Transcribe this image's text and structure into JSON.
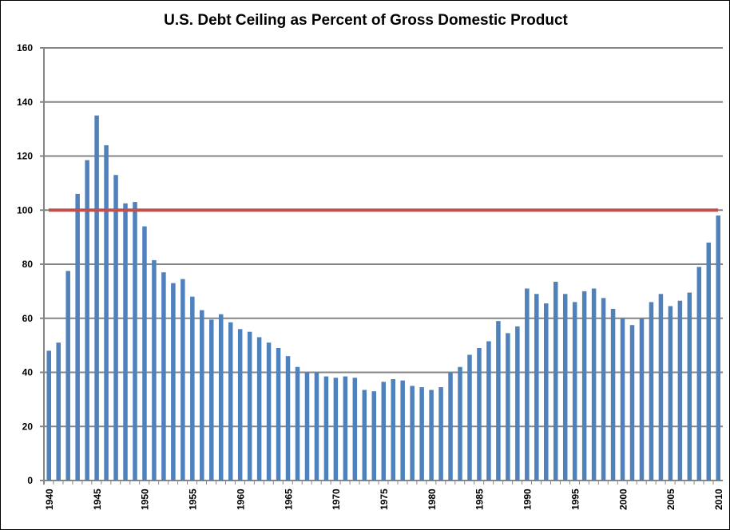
{
  "chart_data": {
    "type": "bar",
    "title": "U.S. Debt Ceiling as Percent of Gross Domestic Product",
    "xlabel": "",
    "ylabel": "",
    "ylim": [
      0,
      160
    ],
    "yticks": [
      0,
      20,
      40,
      60,
      80,
      100,
      120,
      140,
      160
    ],
    "xtick_labels": [
      "1940",
      "1945",
      "1950",
      "1955",
      "1960",
      "1965",
      "1970",
      "1975",
      "1980",
      "1985",
      "1990",
      "1995",
      "2000",
      "2005",
      "2010"
    ],
    "grid": true,
    "legend": "none",
    "categories": [
      1940,
      1941,
      1942,
      1943,
      1944,
      1945,
      1946,
      1947,
      1948,
      1949,
      1950,
      1951,
      1952,
      1953,
      1954,
      1955,
      1956,
      1957,
      1958,
      1959,
      1960,
      1961,
      1962,
      1963,
      1964,
      1965,
      1966,
      1967,
      1968,
      1969,
      1970,
      1971,
      1972,
      1973,
      1974,
      1975,
      1976,
      1977,
      1978,
      1979,
      1980,
      1981,
      1982,
      1983,
      1984,
      1985,
      1986,
      1987,
      1988,
      1989,
      1990,
      1991,
      1992,
      1993,
      1994,
      1995,
      1996,
      1997,
      1998,
      1999,
      2000,
      2001,
      2002,
      2003,
      2004,
      2005,
      2006,
      2007,
      2008,
      2009,
      2010
    ],
    "values": [
      48,
      51,
      77.5,
      106,
      118.5,
      135,
      124,
      113,
      102.5,
      103,
      94,
      81.5,
      77,
      73,
      74.5,
      68,
      63,
      59.5,
      61.5,
      58.5,
      56,
      55,
      53,
      51,
      49,
      46,
      42,
      40,
      40,
      38.5,
      38,
      38.5,
      38,
      33.5,
      33,
      36.5,
      37.5,
      37,
      35,
      34.5,
      33.5,
      34.5,
      40,
      42,
      46.5,
      49,
      51.5,
      59,
      54.5,
      57,
      71,
      69,
      65.5,
      73.5,
      69,
      66,
      70,
      71,
      67.5,
      63.5,
      60,
      57.5,
      60,
      66,
      69,
      64.5,
      66.5,
      69.5,
      79,
      88,
      98
    ],
    "reference_line": {
      "value": 100,
      "x_range": [
        1940,
        2010
      ],
      "color": "#c0504d"
    },
    "bar_color": "#4f81bd",
    "grid_color": "#868686"
  }
}
